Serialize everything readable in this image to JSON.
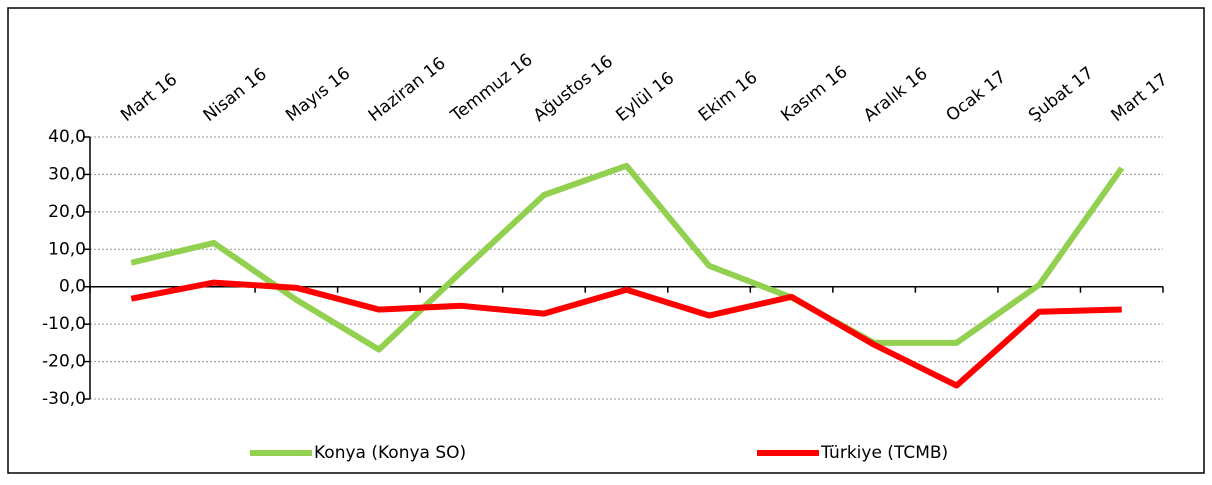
{
  "chart_data": {
    "type": "line",
    "categories": [
      "Mart 16",
      "Nisan 16",
      "Mayıs 16",
      "Haziran 16",
      "Temmuz 16",
      "Ağustos 16",
      "Eylül 16",
      "Ekim 16",
      "Kasım 16",
      "Aralık 16",
      "Ocak 17",
      "Şubat 17",
      "Mart 17"
    ],
    "series": [
      {
        "name": "Konya (Konya SO)",
        "color": "#92d050",
        "values": [
          6.4,
          11.7,
          -3.5,
          -16.8,
          4.0,
          24.5,
          32.3,
          5.6,
          -2.9,
          -15.0,
          -15.0,
          0.5,
          31.7
        ]
      },
      {
        "name": "Türkiye (TCMB)",
        "color": "#ff0000",
        "values": [
          -3.2,
          1.1,
          -0.3,
          -6.1,
          -5.1,
          -7.2,
          -0.8,
          -7.7,
          -2.7,
          -15.5,
          -26.4,
          -6.7,
          -6.1
        ]
      }
    ],
    "ylim": [
      -30,
      40
    ],
    "yticks": [
      {
        "value": -30,
        "label": "-30,0"
      },
      {
        "value": -20,
        "label": "-20,0"
      },
      {
        "value": -10,
        "label": "-10,0"
      },
      {
        "value": 0,
        "label": "0,0"
      },
      {
        "value": 10,
        "label": "10,0"
      },
      {
        "value": 20,
        "label": "20,0"
      },
      {
        "value": 30,
        "label": "30,0"
      },
      {
        "value": 40,
        "label": "40,0"
      }
    ],
    "grid": true,
    "legend": "bottom"
  }
}
